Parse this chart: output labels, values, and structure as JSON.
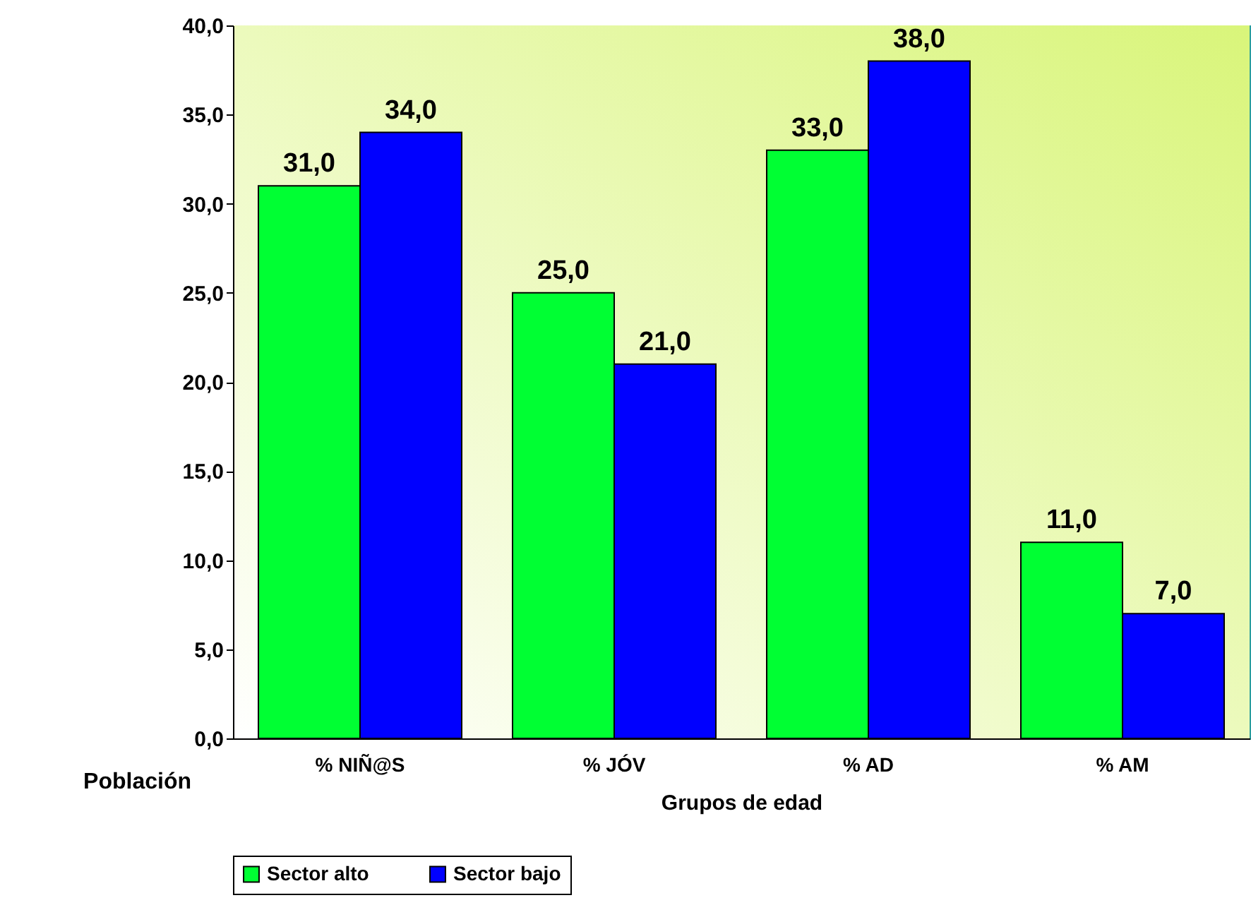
{
  "chart_data": {
    "type": "bar",
    "xlabel": "Grupos de edad",
    "ylabel": "Población",
    "categories": [
      "% NIÑ@S",
      "% JÓV",
      "% AD",
      "% AM"
    ],
    "series": [
      {
        "name": "Sector alto",
        "color": "#00ff33",
        "values": [
          31,
          25,
          33,
          11
        ],
        "value_labels": [
          "31,0",
          "25,0",
          "33,0",
          "11,0"
        ]
      },
      {
        "name": "Sector bajo",
        "color": "#0000ff",
        "values": [
          34,
          21,
          38,
          7
        ],
        "value_labels": [
          "34,0",
          "21,0",
          "38,0",
          "7,0"
        ]
      }
    ],
    "ylim": [
      0,
      40
    ],
    "yticks": [
      {
        "value": 0,
        "label": "0,0"
      },
      {
        "value": 5,
        "label": "5,0"
      },
      {
        "value": 10,
        "label": "10,0"
      },
      {
        "value": 15,
        "label": "15,0"
      },
      {
        "value": 20,
        "label": "20,0"
      },
      {
        "value": 25,
        "label": "25,0"
      },
      {
        "value": 30,
        "label": "30,0"
      },
      {
        "value": 35,
        "label": "35,0"
      },
      {
        "value": 40,
        "label": "40,0"
      }
    ],
    "grid": false,
    "legend": "bottom"
  }
}
